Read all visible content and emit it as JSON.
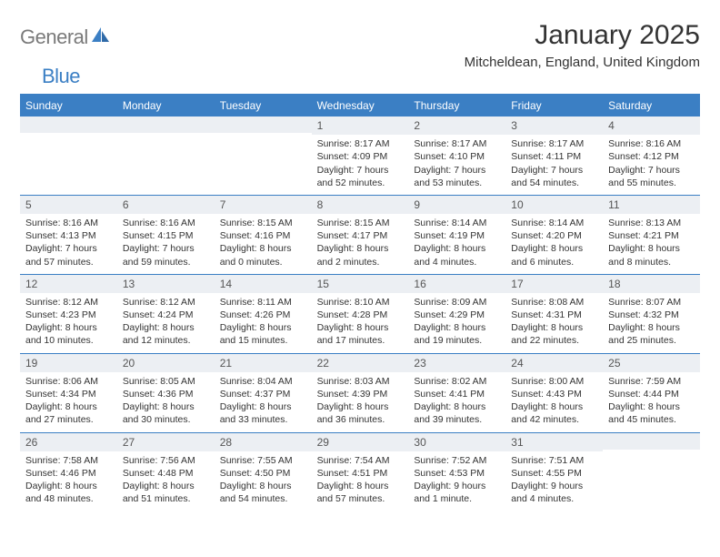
{
  "logo": {
    "text1": "General",
    "text2": "Blue"
  },
  "title": "January 2025",
  "location": "Mitcheldean, England, United Kingdom",
  "header_color": "#3b7fc4",
  "row_border_color": "#3b7fc4",
  "daynum_bg": "#eceff3",
  "weekdays": [
    "Sunday",
    "Monday",
    "Tuesday",
    "Wednesday",
    "Thursday",
    "Friday",
    "Saturday"
  ],
  "weeks": [
    [
      {
        "n": "",
        "lines": [
          "",
          "",
          "",
          ""
        ]
      },
      {
        "n": "",
        "lines": [
          "",
          "",
          "",
          ""
        ]
      },
      {
        "n": "",
        "lines": [
          "",
          "",
          "",
          ""
        ]
      },
      {
        "n": "1",
        "lines": [
          "Sunrise: 8:17 AM",
          "Sunset: 4:09 PM",
          "Daylight: 7 hours",
          "and 52 minutes."
        ]
      },
      {
        "n": "2",
        "lines": [
          "Sunrise: 8:17 AM",
          "Sunset: 4:10 PM",
          "Daylight: 7 hours",
          "and 53 minutes."
        ]
      },
      {
        "n": "3",
        "lines": [
          "Sunrise: 8:17 AM",
          "Sunset: 4:11 PM",
          "Daylight: 7 hours",
          "and 54 minutes."
        ]
      },
      {
        "n": "4",
        "lines": [
          "Sunrise: 8:16 AM",
          "Sunset: 4:12 PM",
          "Daylight: 7 hours",
          "and 55 minutes."
        ]
      }
    ],
    [
      {
        "n": "5",
        "lines": [
          "Sunrise: 8:16 AM",
          "Sunset: 4:13 PM",
          "Daylight: 7 hours",
          "and 57 minutes."
        ]
      },
      {
        "n": "6",
        "lines": [
          "Sunrise: 8:16 AM",
          "Sunset: 4:15 PM",
          "Daylight: 7 hours",
          "and 59 minutes."
        ]
      },
      {
        "n": "7",
        "lines": [
          "Sunrise: 8:15 AM",
          "Sunset: 4:16 PM",
          "Daylight: 8 hours",
          "and 0 minutes."
        ]
      },
      {
        "n": "8",
        "lines": [
          "Sunrise: 8:15 AM",
          "Sunset: 4:17 PM",
          "Daylight: 8 hours",
          "and 2 minutes."
        ]
      },
      {
        "n": "9",
        "lines": [
          "Sunrise: 8:14 AM",
          "Sunset: 4:19 PM",
          "Daylight: 8 hours",
          "and 4 minutes."
        ]
      },
      {
        "n": "10",
        "lines": [
          "Sunrise: 8:14 AM",
          "Sunset: 4:20 PM",
          "Daylight: 8 hours",
          "and 6 minutes."
        ]
      },
      {
        "n": "11",
        "lines": [
          "Sunrise: 8:13 AM",
          "Sunset: 4:21 PM",
          "Daylight: 8 hours",
          "and 8 minutes."
        ]
      }
    ],
    [
      {
        "n": "12",
        "lines": [
          "Sunrise: 8:12 AM",
          "Sunset: 4:23 PM",
          "Daylight: 8 hours",
          "and 10 minutes."
        ]
      },
      {
        "n": "13",
        "lines": [
          "Sunrise: 8:12 AM",
          "Sunset: 4:24 PM",
          "Daylight: 8 hours",
          "and 12 minutes."
        ]
      },
      {
        "n": "14",
        "lines": [
          "Sunrise: 8:11 AM",
          "Sunset: 4:26 PM",
          "Daylight: 8 hours",
          "and 15 minutes."
        ]
      },
      {
        "n": "15",
        "lines": [
          "Sunrise: 8:10 AM",
          "Sunset: 4:28 PM",
          "Daylight: 8 hours",
          "and 17 minutes."
        ]
      },
      {
        "n": "16",
        "lines": [
          "Sunrise: 8:09 AM",
          "Sunset: 4:29 PM",
          "Daylight: 8 hours",
          "and 19 minutes."
        ]
      },
      {
        "n": "17",
        "lines": [
          "Sunrise: 8:08 AM",
          "Sunset: 4:31 PM",
          "Daylight: 8 hours",
          "and 22 minutes."
        ]
      },
      {
        "n": "18",
        "lines": [
          "Sunrise: 8:07 AM",
          "Sunset: 4:32 PM",
          "Daylight: 8 hours",
          "and 25 minutes."
        ]
      }
    ],
    [
      {
        "n": "19",
        "lines": [
          "Sunrise: 8:06 AM",
          "Sunset: 4:34 PM",
          "Daylight: 8 hours",
          "and 27 minutes."
        ]
      },
      {
        "n": "20",
        "lines": [
          "Sunrise: 8:05 AM",
          "Sunset: 4:36 PM",
          "Daylight: 8 hours",
          "and 30 minutes."
        ]
      },
      {
        "n": "21",
        "lines": [
          "Sunrise: 8:04 AM",
          "Sunset: 4:37 PM",
          "Daylight: 8 hours",
          "and 33 minutes."
        ]
      },
      {
        "n": "22",
        "lines": [
          "Sunrise: 8:03 AM",
          "Sunset: 4:39 PM",
          "Daylight: 8 hours",
          "and 36 minutes."
        ]
      },
      {
        "n": "23",
        "lines": [
          "Sunrise: 8:02 AM",
          "Sunset: 4:41 PM",
          "Daylight: 8 hours",
          "and 39 minutes."
        ]
      },
      {
        "n": "24",
        "lines": [
          "Sunrise: 8:00 AM",
          "Sunset: 4:43 PM",
          "Daylight: 8 hours",
          "and 42 minutes."
        ]
      },
      {
        "n": "25",
        "lines": [
          "Sunrise: 7:59 AM",
          "Sunset: 4:44 PM",
          "Daylight: 8 hours",
          "and 45 minutes."
        ]
      }
    ],
    [
      {
        "n": "26",
        "lines": [
          "Sunrise: 7:58 AM",
          "Sunset: 4:46 PM",
          "Daylight: 8 hours",
          "and 48 minutes."
        ]
      },
      {
        "n": "27",
        "lines": [
          "Sunrise: 7:56 AM",
          "Sunset: 4:48 PM",
          "Daylight: 8 hours",
          "and 51 minutes."
        ]
      },
      {
        "n": "28",
        "lines": [
          "Sunrise: 7:55 AM",
          "Sunset: 4:50 PM",
          "Daylight: 8 hours",
          "and 54 minutes."
        ]
      },
      {
        "n": "29",
        "lines": [
          "Sunrise: 7:54 AM",
          "Sunset: 4:51 PM",
          "Daylight: 8 hours",
          "and 57 minutes."
        ]
      },
      {
        "n": "30",
        "lines": [
          "Sunrise: 7:52 AM",
          "Sunset: 4:53 PM",
          "Daylight: 9 hours",
          "and 1 minute."
        ]
      },
      {
        "n": "31",
        "lines": [
          "Sunrise: 7:51 AM",
          "Sunset: 4:55 PM",
          "Daylight: 9 hours",
          "and 4 minutes."
        ]
      },
      {
        "n": "",
        "lines": [
          "",
          "",
          "",
          ""
        ]
      }
    ]
  ]
}
